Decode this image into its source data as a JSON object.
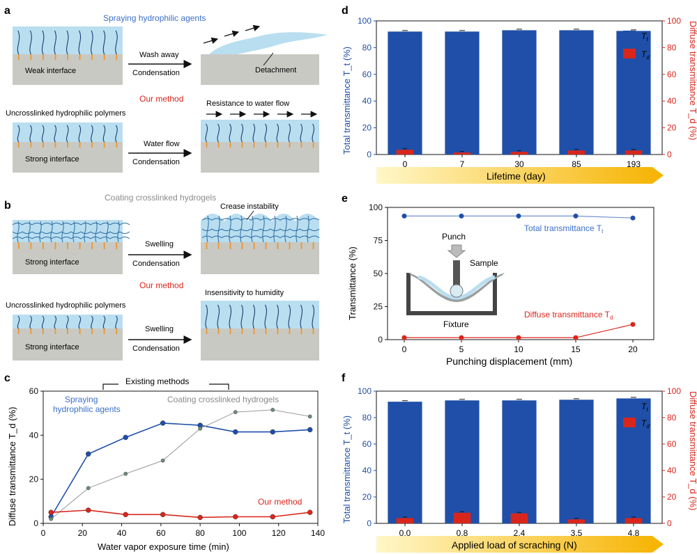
{
  "colors": {
    "blue": "#1f4fa8",
    "red": "#d9261c",
    "gray": "#c9c9c3",
    "water": "#b9def0",
    "orange": "#e89a3c",
    "arrowStart": "#fff3b0",
    "arrowEnd": "#f5b400",
    "grayLine": "#9a9a9a",
    "redText": "#d9261c",
    "blueText": "#3a6fc8"
  },
  "panels": {
    "a": "a",
    "b": "b",
    "c": "c",
    "d": "d",
    "e": "e",
    "f": "f"
  },
  "a": {
    "top_title": "Spraying hydrophilic agents",
    "weak": "Weak interface",
    "wash": "Wash away",
    "cond1": "Condensation",
    "detach": "Detachment",
    "our": "Our method",
    "resist": "Resistance to water flow",
    "uncross": "Uncrosslinked hydrophilic polymers",
    "flow": "Water flow",
    "cond2": "Condensation",
    "strong": "Strong interface"
  },
  "b": {
    "top_title": "Coating crosslinked hydrogels",
    "crease": "Crease instability",
    "strong1": "Strong interface",
    "swell1": "Swelling",
    "cond1": "Condensation",
    "our": "Our method",
    "insens": "Insensitivity to humidity",
    "uncross": "Uncrosslinked hydrophilic polymers",
    "strong2": "Strong interface",
    "swell2": "Swelling",
    "cond2": "Condensation"
  },
  "chart_data": [
    {
      "id": "c",
      "type": "line",
      "title": "Existing methods",
      "xlabel": "Water vapor exposure time (min)",
      "ylabel": "Diffuse transmittance T_d (%)",
      "xlim": [
        0,
        140
      ],
      "ylim": [
        0,
        60
      ],
      "xticks": [
        "0",
        "20",
        "40",
        "60",
        "80",
        "100",
        "120",
        "140"
      ],
      "yticks": [
        "0",
        "20",
        "40",
        "60"
      ],
      "series": [
        {
          "name": "Spraying hydrophilic agents",
          "x": [
            4,
            23,
            42,
            61,
            80,
            98,
            117,
            136
          ],
          "values": [
            3,
            31.5,
            39,
            45.5,
            44.5,
            41.5,
            41.5,
            42.5
          ]
        },
        {
          "name": "Coating crosslinked hydrogels",
          "x": [
            4,
            23,
            42,
            61,
            80,
            98,
            117,
            136
          ],
          "values": [
            2,
            16,
            22.5,
            28.5,
            43,
            50.5,
            51.5,
            48.5
          ]
        },
        {
          "name": "Our method",
          "x": [
            4,
            23,
            42,
            61,
            80,
            98,
            117,
            136
          ],
          "values": [
            5,
            6,
            4,
            4,
            2.7,
            3,
            3,
            5
          ]
        }
      ],
      "labels": {
        "spray1": "Spraying",
        "spray2": "hydrophilic agents",
        "coat": "Coating crosslinked hydrogels",
        "our": "Our method"
      }
    },
    {
      "id": "d",
      "type": "bar",
      "categories": [
        "0",
        "7",
        "30",
        "85",
        "193"
      ],
      "xlabel": "Lifetime (day)",
      "ylabel_left": "Total transmittance T_t (%)",
      "ylabel_right": "Diffuse transmittance T_d (%)",
      "ylim": [
        0,
        100
      ],
      "yticks": [
        "0",
        "20",
        "40",
        "60",
        "80",
        "100"
      ],
      "series": [
        {
          "name": "T_t",
          "values": [
            92,
            92,
            93,
            93,
            92.5
          ]
        },
        {
          "name": "T_d",
          "values": [
            3.5,
            1.5,
            2,
            3,
            3
          ]
        }
      ],
      "legend": {
        "tt": "T",
        "tt_sub": "t",
        "td": "T",
        "td_sub": "d"
      }
    },
    {
      "id": "e",
      "type": "line",
      "xlabel": "Punching displacement (mm)",
      "ylabel": "Transmittance (%)",
      "xlim": [
        0,
        20
      ],
      "ylim": [
        0,
        100
      ],
      "xticks": [
        "0",
        "5",
        "10",
        "15",
        "20"
      ],
      "yticks": [
        "0",
        "25",
        "50",
        "75",
        "100"
      ],
      "series": [
        {
          "name": "Total transmittance T_t",
          "x": [
            0,
            5,
            10,
            15,
            20
          ],
          "values": [
            93.5,
            93.5,
            93.5,
            93.5,
            92
          ]
        },
        {
          "name": "Diffuse transmittance T_d",
          "x": [
            0,
            5,
            10,
            15,
            20
          ],
          "values": [
            1.5,
            1.5,
            1.5,
            1.5,
            11.5
          ]
        }
      ],
      "labels": {
        "tt": "Total transmittance T",
        "tt_sub": "t",
        "td": "Diffuse transmittance T",
        "td_sub": "d",
        "punch": "Punch",
        "sample": "Sample",
        "fixture": "Fixture"
      }
    },
    {
      "id": "f",
      "type": "bar",
      "categories": [
        "0.0",
        "0.8",
        "2.4",
        "3.5",
        "4.8"
      ],
      "xlabel": "Applied load of scraching (N)",
      "ylabel_left": "Total transmittance T_t (%)",
      "ylabel_right": "Diffuse transmittance T_d (%)",
      "ylim": [
        0,
        100
      ],
      "yticks": [
        "0",
        "20",
        "40",
        "60",
        "80",
        "100"
      ],
      "series": [
        {
          "name": "T_t",
          "values": [
            92,
            93,
            93,
            93.5,
            94.5
          ]
        },
        {
          "name": "T_d",
          "values": [
            4,
            8,
            7.5,
            3,
            4
          ]
        }
      ],
      "legend": {
        "tt": "T",
        "tt_sub": "t",
        "td": "T",
        "td_sub": "d"
      }
    }
  ]
}
